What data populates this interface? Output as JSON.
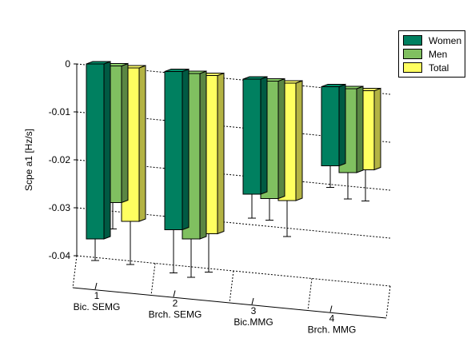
{
  "chart_data": {
    "type": "bar",
    "ylabel": "Scpe a1 [Hz/s]",
    "ylim": [
      -0.04,
      0
    ],
    "yticks": [
      0,
      -0.01,
      -0.02,
      -0.03,
      -0.04
    ],
    "ytick_labels": [
      "0",
      "-0.01",
      "-0.02",
      "-0.03",
      "-0.04"
    ],
    "categories": [
      {
        "number": "1",
        "name": "Bic. SEMG"
      },
      {
        "number": "2",
        "name": "Brch. SEMG"
      },
      {
        "number": "3",
        "name": "Bic.MMG"
      },
      {
        "number": "4",
        "name": "Brch. MMG"
      }
    ],
    "series": [
      {
        "name": "Women",
        "color": "#008060",
        "values": [
          -0.0365,
          -0.033,
          -0.024,
          -0.0165
        ],
        "err_low": [
          -0.041,
          -0.042,
          -0.029,
          -0.021
        ]
      },
      {
        "name": "Men",
        "color": "#80c060",
        "values": [
          -0.0285,
          -0.0345,
          -0.0245,
          -0.0175
        ],
        "err_low": [
          -0.034,
          -0.0425,
          -0.029,
          -0.023
        ]
      },
      {
        "name": "Total",
        "color": "#ffff60",
        "values": [
          -0.032,
          -0.033,
          -0.0245,
          -0.0165
        ],
        "err_low": [
          -0.041,
          -0.041,
          -0.032,
          -0.023
        ]
      }
    ],
    "grid": true,
    "legend_position": "top-right",
    "projection": "3d"
  }
}
